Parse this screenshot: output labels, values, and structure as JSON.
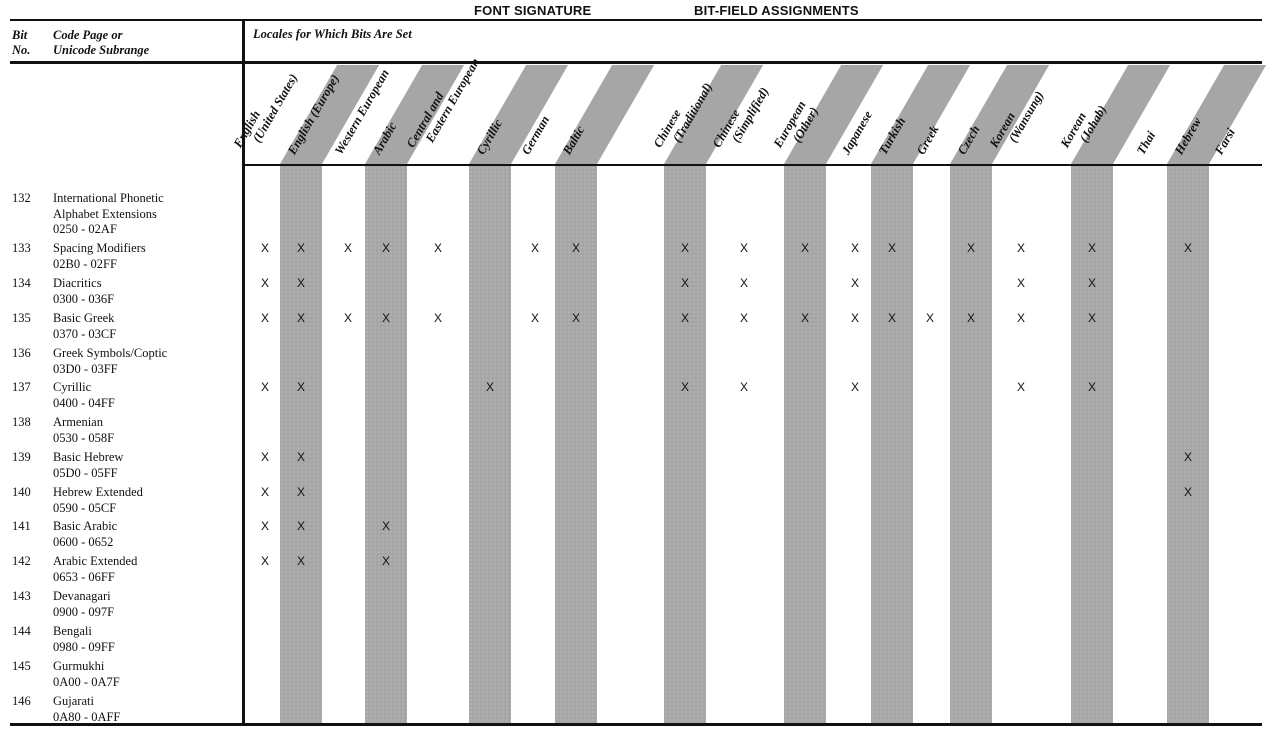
{
  "title_left": "FONT SIGNATURE",
  "title_right": "BIT-FIELD ASSIGNMENTS",
  "header": {
    "bit_no_line1": "Bit",
    "bit_no_line2": "No.",
    "code_page_line1": "Code Page or",
    "code_page_line2": "Unicode Subrange",
    "locales_label": "Locales for Which Bits Are Set"
  },
  "locales": [
    {
      "l1": "English",
      "l2": "(United States)"
    },
    {
      "l1": "English (Europe)"
    },
    {
      "l1": "Western European"
    },
    {
      "l1": "Arabic"
    },
    {
      "l1": "Central and",
      "l2": "Eastern European"
    },
    {
      "l1": "Cyrillic"
    },
    {
      "l1": "German"
    },
    {
      "l1": "Baltic"
    },
    {
      "l1": "Chinese",
      "l2": "(Traditional)"
    },
    {
      "l1": "Chinese",
      "l2": "(Simplified)"
    },
    {
      "l1": "European",
      "l2": "(Other)"
    },
    {
      "l1": "Japanese"
    },
    {
      "l1": "Turkish"
    },
    {
      "l1": "Greek"
    },
    {
      "l1": "Czech"
    },
    {
      "l1": "Korean",
      "l2": "(Wansung)"
    },
    {
      "l1": "Korean",
      "l2": "(Johab)"
    },
    {
      "l1": "Thai"
    },
    {
      "l1": "Hebrew"
    },
    {
      "l1": "Farsi"
    }
  ],
  "rows": [
    {
      "bit": "132",
      "name": [
        "International Phonetic",
        "Alphabet Extensions",
        "0250 - 02AF"
      ],
      "marks": []
    },
    {
      "bit": "133",
      "name": [
        "Spacing Modifiers",
        "02B0 - 02FF"
      ],
      "marks": [
        0,
        1,
        2,
        3,
        4,
        6,
        7,
        8,
        9,
        10,
        11,
        12,
        14,
        15,
        16,
        18
      ]
    },
    {
      "bit": "134",
      "name": [
        "Diacritics",
        "0300 - 036F"
      ],
      "marks": [
        0,
        1,
        8,
        9,
        11,
        15,
        16
      ]
    },
    {
      "bit": "135",
      "name": [
        "Basic Greek",
        "0370 - 03CF"
      ],
      "marks": [
        0,
        1,
        2,
        3,
        4,
        6,
        7,
        8,
        9,
        10,
        11,
        12,
        13,
        14,
        15,
        16
      ]
    },
    {
      "bit": "136",
      "name": [
        "Greek Symbols/Coptic",
        "03D0 - 03FF"
      ],
      "marks": []
    },
    {
      "bit": "137",
      "name": [
        "Cyrillic",
        "0400 - 04FF"
      ],
      "marks": [
        0,
        1,
        5,
        8,
        9,
        11,
        15,
        16
      ]
    },
    {
      "bit": "138",
      "name": [
        "Armenian",
        "0530 - 058F"
      ],
      "marks": []
    },
    {
      "bit": "139",
      "name": [
        "Basic Hebrew",
        "05D0 - 05FF"
      ],
      "marks": [
        0,
        1,
        18
      ]
    },
    {
      "bit": "140",
      "name": [
        "Hebrew Extended",
        "0590 - 05CF"
      ],
      "marks": [
        0,
        1,
        18
      ]
    },
    {
      "bit": "141",
      "name": [
        "Basic Arabic",
        "0600 - 0652"
      ],
      "marks": [
        0,
        1,
        3
      ]
    },
    {
      "bit": "142",
      "name": [
        "Arabic Extended",
        "0653 - 06FF"
      ],
      "marks": [
        0,
        1,
        3
      ]
    },
    {
      "bit": "143",
      "name": [
        "Devanagari",
        "0900 - 097F"
      ],
      "marks": []
    },
    {
      "bit": "144",
      "name": [
        "Bengali",
        "0980 - 09FF"
      ],
      "marks": []
    },
    {
      "bit": "145",
      "name": [
        "Gurmukhi",
        "0A00 - 0A7F"
      ],
      "marks": []
    },
    {
      "bit": "146",
      "name": [
        "Gujarati",
        "0A80 - 0AFF"
      ],
      "marks": []
    }
  ],
  "mark_symbol": "X",
  "colors": {
    "band": "#a6a6a6",
    "rule": "#111111"
  }
}
